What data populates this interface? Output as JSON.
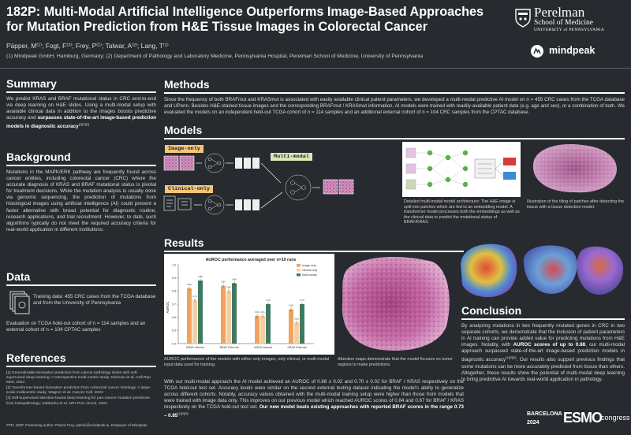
{
  "header": {
    "title": "182P: Multi-Modal Artificial Intelligence Outperforms Image-Based Approaches for Mutation Prediction from H&E Tissue Images in Colorectal Cancer",
    "authors": "Päpper, M⁽¹⁾; Fogt, F⁽²⁾; Frey, P⁽¹⁾; Talwar, A⁽²⁾; Lang, T⁽¹⁾",
    "affiliations": "(1) Mindpeak GmbH, Hamburg, Germany; (2) Department of Pathology and Laboratory Medicine, Pennsylvania Hospital, Perelman School of Medicine, University of Pennsylvania",
    "penn_logo": {
      "name": "Perelman",
      "line2": "School of Medicine",
      "line3": "UNIVERSITY of PENNSYLVANIA"
    },
    "mindpeak_logo": "mindpeak"
  },
  "summary": {
    "title": "Summary",
    "text_plain": "We predict KRAS and BRAF mutational status in CRC end-to-end via deep learning on H&E slides. Using a multi-modal setup with available clinical data in addition to the images boosts predictive accuracy and",
    "text_bold": "surpasses state-of-the-art image-based prediction models in diagnostic accuracy",
    "text_refs": "[1][2][3]"
  },
  "background": {
    "title": "Background",
    "text": "Mutations in the MAPK/ERK pathway are frequently found across cancer entities, including colorectal cancer (CRC) where the accurate diagnosis of KRAS and BRAF mutational status is pivotal for treatment decisions. While the mutation analysis is usually done via genomic sequencing, the prediction of mutations from histological images using artificial intelligence (AI) could present a faster alternative with broad potential for diagnostic routine, research applications, and trial recruitment. However, to date, such algorithms typically do not meet the required accuracy criteria for real-world application in different institutions."
  },
  "data_section": {
    "title": "Data",
    "training": "Training data: 455 CRC cases from the TCGA database and from the University of Pennsylvania",
    "evaluation": "Evaluation on TCGA hold-out cohort of n = 114 samples and an external cohort of n = 104 CPTAC samples"
  },
  "references": {
    "title": "References",
    "items": [
      "[1] Generalizable biomarker prediction from cancer pathology slides with self-supervised deep learning: A retrospective multi-centric study; Niehues et al. Cell Rep Med, 2023",
      "[2] Transformer-based biomarker prediction from colorectal cancer histology: A large-scale multicentric study; Wagner et al. Cancer Cell, 2023",
      "[3] Self-supervised attention-based deep learning for pan-cancer mutation prediction from histopathology; Saldanha et al. NPJ Prec Oncol, 2023"
    ],
    "footnote": "FPN: 182P, Presenting author: Patrick Frey, patrick@mindpeak.ai, Employee of Mindpeak"
  },
  "methods": {
    "title": "Methods",
    "text": "Since the frequency of both BRAFmut and KRASmut is associated with easily available clinical patient parameters, we developed a multi-modal predictive AI model on n = 455 CRC cases from the TCGA database and UPenn. Besides H&E-stained tissue images and the corresponding BRAFmut / KRASmut information, AI models were trained with readily-available patient data (e.g. age and sex), or a combination of both. We evaluated the models on an independent held-out TCGA cohort of n = 114 samples and an additional external cohort of n = 104 CRC samples from the CPTAC database."
  },
  "models": {
    "title": "Models",
    "image_only": "Image-only",
    "clinical_only": "Clinical-only",
    "multi_modal": "Multi-modal",
    "caption_arch": "Detailed multi-modal model architecture: The H&E image is split into patches which are fed to an embedding model. A transformer model processes both the embeddings as well as the clinical data to predict the mutational status of BRAF/KRAS.",
    "caption_tiling": "Illustration of the tiling of patches after detecting the tissue with a tissue detection model."
  },
  "results": {
    "title": "Results",
    "chart_caption": "AUROC performance of the models with either only images, only clinical, or multi-modal input data used for training.",
    "attention_caption": "Attention maps demonstrate that the model focuses on tumor regions to make predictions.",
    "text_plain": "With our multi-modal approach the AI model achieved an AUROC of 0.88 ± 0.02 and 0.70 ± 0.02 for BRAF / KRAS respectively on the TCGA hold-out test set. Accuracy levels were similar on the second external testing dataset indicating the model's ability to generalize across different cohorts. Notably, accuracy values obtained with the multi-modal training setup were higher than those from models that were trained with image data only. This improves on our previous model which reached AUROC scores of 0.84 and 0.67 for BRAF / KRAS respectively on the TCGA hold-out test set.",
    "text_bold": "Our new model beats existing approaches with reported BRAF scores in the range 0.73 – 0.85",
    "text_refs": "[1][2][3]"
  },
  "conclusion": {
    "title": "Conclusion",
    "text_a": "By analyzing mutations in two frequently mutated genes in CRC in two separate cohorts, we demonstrate that the inclusion of patient parameters in AI training can provide added value for predicting mutations from H&E images. Notably, with",
    "text_bold": "AUROC scores of up to 0.88",
    "text_b": ", our multi-modal approach surpassed state-of-the-art image-based prediction models in diagnostic accuracy",
    "text_refs": "[1][2][3]",
    "text_c": ". Our results also support previous findings that some mutations can be more accurately predicted from tissue than others. Altogether, these results show the potential of multi-modal deep learning to bring predictive AI towards real-world application in pathology."
  },
  "footer": {
    "congress_city": "BARCELONA",
    "congress_year": "2024",
    "congress_brand": "ESMO",
    "congress_word": "congress"
  },
  "chart_data": {
    "type": "bar",
    "title": "AUROC performance averaged over n=10 runs",
    "ylabel": "AUROC",
    "xlabel": "",
    "ylim": [
      0.4,
      1.0
    ],
    "categories": [
      "BRAF Internal",
      "BRAF External",
      "KRAS Internal",
      "KRAS External"
    ],
    "series": [
      {
        "name": "Image only",
        "values": [
          0.82,
          0.84,
          0.61,
          0.66
        ],
        "color": "#f0a35c"
      },
      {
        "name": "Clinical only",
        "values": [
          0.73,
          0.8,
          0.61,
          0.56
        ],
        "color": "#f3cfa6"
      },
      {
        "name": "Multi-modal",
        "values": [
          0.88,
          0.86,
          0.7,
          0.7
        ],
        "color": "#3e7a60"
      }
    ],
    "legend": "top-right"
  },
  "colors": {
    "background": "#272a2f",
    "accent": "#ffffff",
    "multi_modal_badge": "#d9e8b8",
    "pill": "#f4c67a"
  }
}
